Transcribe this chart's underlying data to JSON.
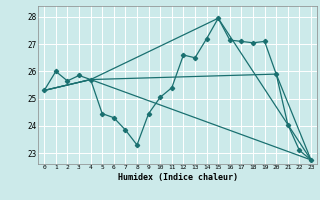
{
  "xlabel": "Humidex (Indice chaleur)",
  "bg_color": "#cceaea",
  "grid_color": "#ffffff",
  "line_color": "#1a7070",
  "xlim": [
    -0.5,
    23.5
  ],
  "ylim": [
    22.6,
    28.4
  ],
  "yticks": [
    23,
    24,
    25,
    26,
    27,
    28
  ],
  "xticks": [
    0,
    1,
    2,
    3,
    4,
    5,
    6,
    7,
    8,
    9,
    10,
    11,
    12,
    13,
    14,
    15,
    16,
    17,
    18,
    19,
    20,
    21,
    22,
    23
  ],
  "series1_x": [
    0,
    1,
    2,
    3,
    4,
    5,
    6,
    7,
    8,
    9,
    10,
    11,
    12,
    13,
    14,
    15,
    16,
    17,
    18,
    19,
    20,
    21,
    22,
    23
  ],
  "series1_y": [
    25.3,
    26.0,
    25.65,
    25.85,
    25.7,
    24.45,
    24.3,
    23.85,
    23.3,
    24.45,
    25.05,
    25.4,
    26.6,
    26.5,
    27.2,
    27.95,
    27.15,
    27.1,
    27.05,
    27.1,
    25.9,
    24.05,
    23.1,
    22.75
  ],
  "line2_x": [
    0,
    4,
    15,
    23
  ],
  "line2_y": [
    25.3,
    25.7,
    27.95,
    22.75
  ],
  "line3_x": [
    0,
    4,
    20,
    23
  ],
  "line3_y": [
    25.3,
    25.7,
    25.9,
    22.75
  ],
  "line4_x": [
    0,
    4,
    23
  ],
  "line4_y": [
    25.3,
    25.7,
    22.75
  ]
}
